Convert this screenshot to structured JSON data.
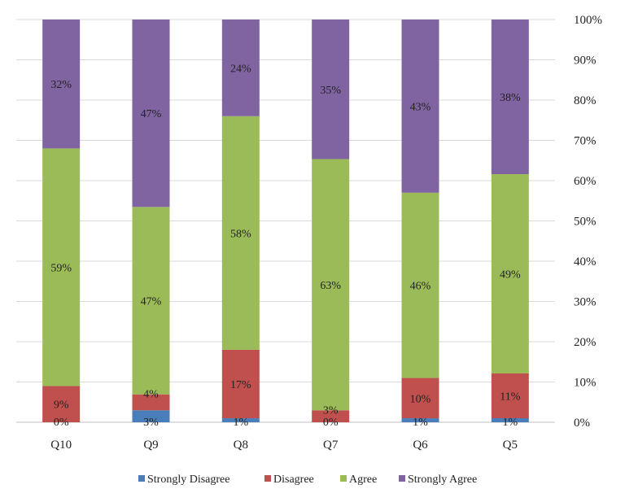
{
  "chart_data": {
    "type": "bar",
    "stacked": true,
    "percent_stacked": true,
    "categories": [
      "Q10",
      "Q9",
      "Q8",
      "Q7",
      "Q6",
      "Q5"
    ],
    "series": [
      {
        "name": "Strongly Disagree",
        "values": [
          0,
          3,
          1,
          0,
          1,
          1
        ],
        "color": "#4a7ebb"
      },
      {
        "name": "Disagree",
        "values": [
          9,
          4,
          17,
          3,
          10,
          11
        ],
        "color": "#c0504d"
      },
      {
        "name": "Agree",
        "values": [
          59,
          47,
          58,
          63,
          46,
          49
        ],
        "color": "#9bbb59"
      },
      {
        "name": "Strongly Agree",
        "values": [
          32,
          47,
          24,
          35,
          43,
          38
        ],
        "color": "#8064a2"
      }
    ],
    "data_labels": [
      [
        "0%",
        "9%",
        "59%",
        "32%"
      ],
      [
        "3%",
        "4%",
        "47%",
        "47%"
      ],
      [
        "1%",
        "17%",
        "58%",
        "24%"
      ],
      [
        "0%",
        "3%",
        "63%",
        "35%"
      ],
      [
        "1%",
        "10%",
        "46%",
        "43%"
      ],
      [
        "1%",
        "11%",
        "49%",
        "38%"
      ]
    ],
    "y_ticks": [
      "0%",
      "10%",
      "20%",
      "30%",
      "40%",
      "50%",
      "60%",
      "70%",
      "80%",
      "90%",
      "100%"
    ],
    "ylim": [
      0,
      100
    ],
    "y_axis_side": "right",
    "grid": true,
    "legend_position": "bottom",
    "title": "",
    "xlabel": "",
    "ylabel": ""
  }
}
